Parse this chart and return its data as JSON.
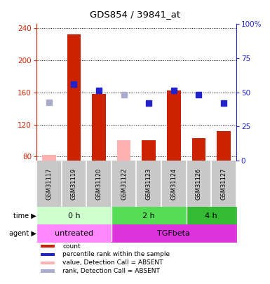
{
  "title": "GDS854 / 39841_at",
  "samples": [
    "GSM31117",
    "GSM31119",
    "GSM31120",
    "GSM31122",
    "GSM31123",
    "GSM31124",
    "GSM31126",
    "GSM31127"
  ],
  "count_values": [
    82,
    232,
    158,
    null,
    100,
    162,
    103,
    112
  ],
  "count_absent_values": [
    82,
    null,
    null,
    100,
    null,
    null,
    null,
    null
  ],
  "rank_values": [
    null,
    170,
    162,
    null,
    147,
    162,
    157,
    147
  ],
  "rank_absent_values": [
    148,
    null,
    null,
    157,
    null,
    null,
    null,
    null
  ],
  "ylim_left": [
    75,
    245
  ],
  "ylim_right": [
    0,
    100
  ],
  "yticks_left": [
    80,
    120,
    160,
    200,
    240
  ],
  "yticks_right": [
    0,
    25,
    50,
    75,
    100
  ],
  "ytick_right_labels": [
    "0",
    "25",
    "50",
    "75",
    "100%"
  ],
  "bar_color": "#cc2200",
  "bar_absent_color": "#ffb0b0",
  "rank_color": "#2222cc",
  "rank_absent_color": "#aaaacc",
  "time_groups": [
    {
      "label": "0 h",
      "start": 0,
      "end": 3,
      "color": "#ccffcc"
    },
    {
      "label": "2 h",
      "start": 3,
      "end": 6,
      "color": "#55dd55"
    },
    {
      "label": "4 h",
      "start": 6,
      "end": 8,
      "color": "#33bb33"
    }
  ],
  "agent_groups": [
    {
      "label": "untreated",
      "start": 0,
      "end": 3,
      "color": "#ff88ff"
    },
    {
      "label": "TGFbeta",
      "start": 3,
      "end": 8,
      "color": "#dd33dd"
    }
  ],
  "legend_items": [
    {
      "label": "count",
      "color": "#cc2200"
    },
    {
      "label": "percentile rank within the sample",
      "color": "#2222cc"
    },
    {
      "label": "value, Detection Call = ABSENT",
      "color": "#ffb0b0"
    },
    {
      "label": "rank, Detection Call = ABSENT",
      "color": "#aaaacc"
    }
  ],
  "background_color": "#ffffff",
  "bar_width": 0.55,
  "rank_marker_size": 6
}
